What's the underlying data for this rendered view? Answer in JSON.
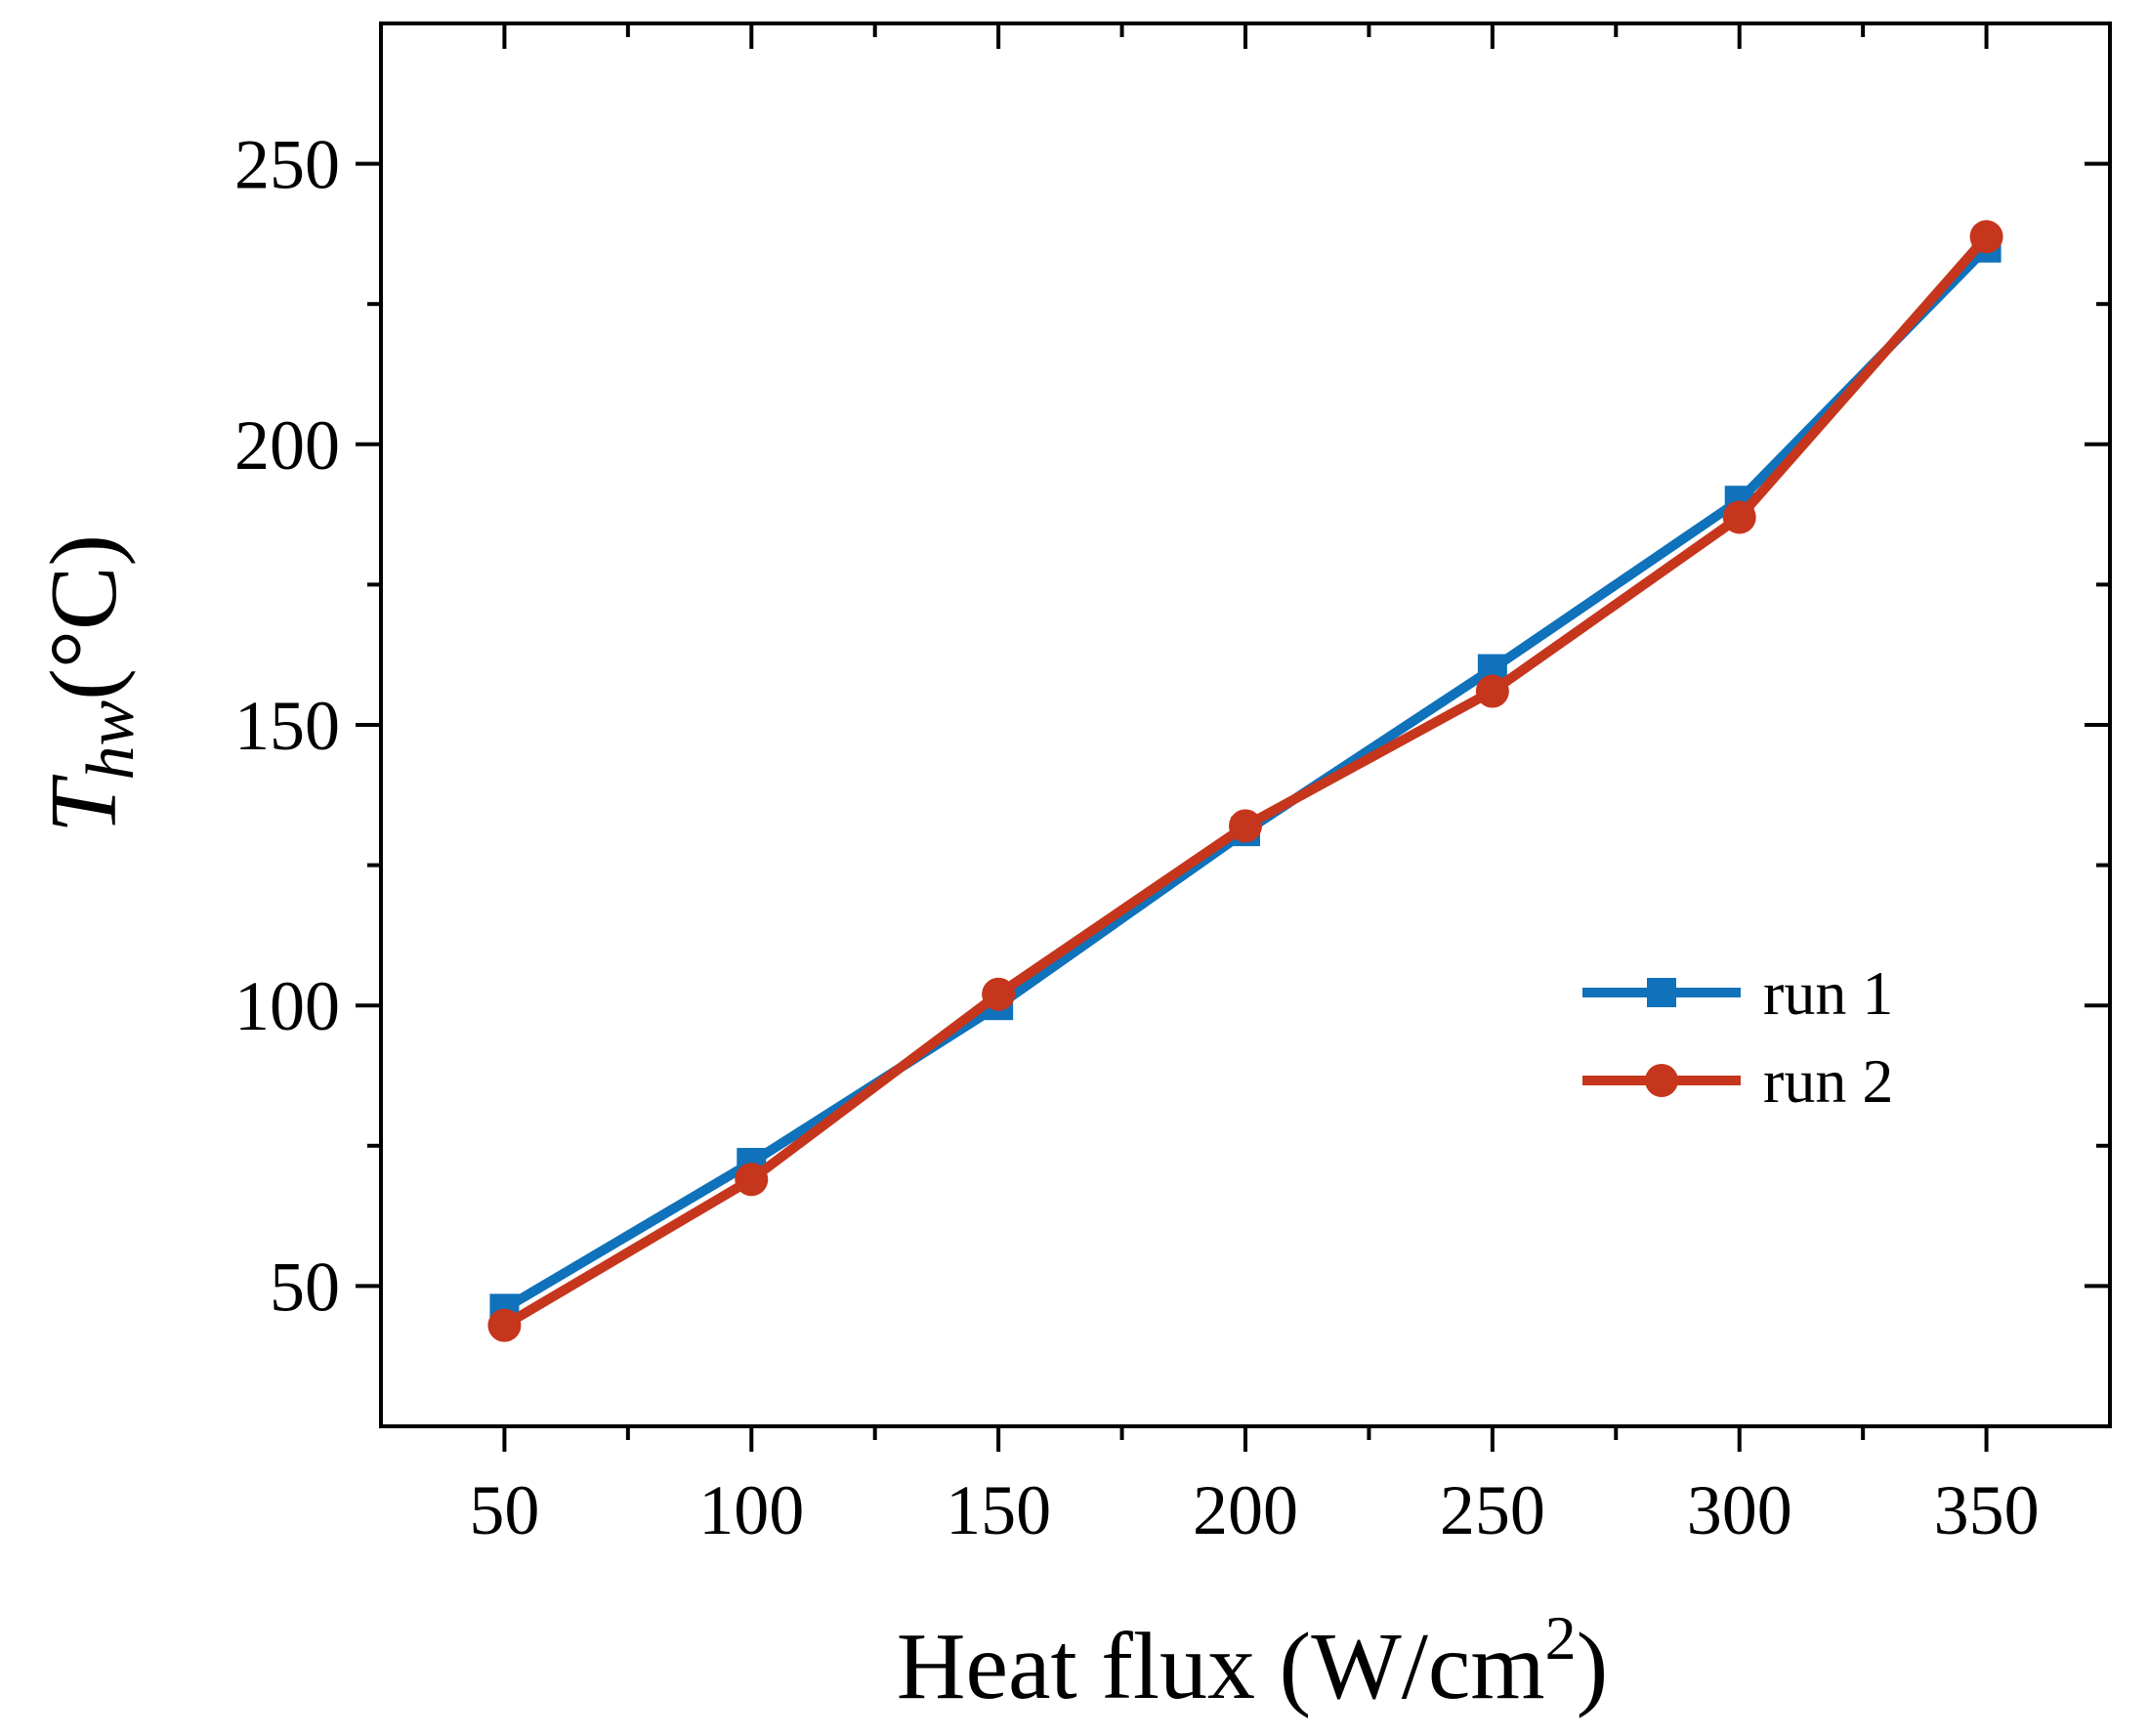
{
  "chart_data": {
    "type": "line",
    "title": "",
    "xlabel": {
      "main": "Heat flux (W/cm",
      "sup": "2",
      "close": ")"
    },
    "ylabel": {
      "symbol": "T",
      "sub": "hw",
      "unit": "(°C)"
    },
    "xlim": [
      25,
      375
    ],
    "ylim": [
      25,
      275
    ],
    "xticks": [
      50,
      100,
      150,
      200,
      250,
      300,
      350
    ],
    "xticks_minor": [
      75,
      125,
      175,
      225,
      275,
      325
    ],
    "yticks": [
      50,
      100,
      150,
      200,
      250
    ],
    "yticks_minor": [
      75,
      125,
      175,
      225
    ],
    "grid": false,
    "legend_position": "center-right",
    "x": [
      50,
      100,
      150,
      200,
      250,
      300,
      350
    ],
    "series": [
      {
        "name": "run 1",
        "marker": "square",
        "color": "#0F72BA",
        "values": [
          46,
          72,
          100,
          131,
          160,
          190,
          235
        ]
      },
      {
        "name": "run 2",
        "marker": "circle",
        "color": "#C6361C",
        "values": [
          43,
          69,
          102,
          132,
          156,
          187,
          237
        ]
      }
    ]
  }
}
